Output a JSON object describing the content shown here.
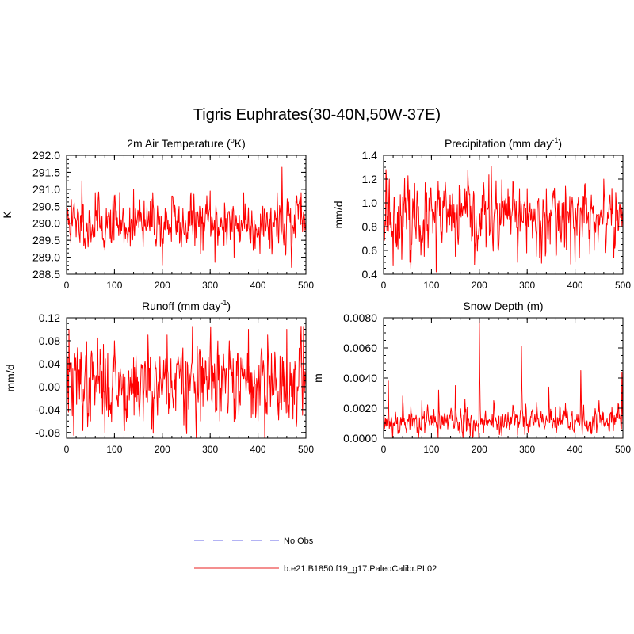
{
  "figure": {
    "title": "Tigris Euphrates(30-40N,50W-37E)"
  },
  "legend": {
    "entries": [
      {
        "label": "No Obs",
        "color": "#9a9af0",
        "style": "dashed"
      },
      {
        "label": "b.e21.B1850.f19_g17.PaleoCalibr.PI.02",
        "color": "#f06a6a",
        "style": "solid"
      }
    ]
  },
  "chart_data": [
    {
      "type": "line",
      "title_main": "2m Air Temperature (",
      "title_sup": "o",
      "title_tail": "K)",
      "ylabel": "K",
      "xlabel": "",
      "xlim": [
        0,
        500
      ],
      "ylim": [
        288.5,
        292.0
      ],
      "xticks": [
        0,
        100,
        200,
        300,
        400,
        500
      ],
      "xtick_labels": [
        "0",
        "100",
        "200",
        "300",
        "400",
        "500"
      ],
      "yticks": [
        288.5,
        289.0,
        289.5,
        290.0,
        290.5,
        291.0,
        291.5,
        292.0
      ],
      "ytick_labels": [
        "288.5",
        "289.0",
        "289.5",
        "290.0",
        "290.5",
        "291.0",
        "291.5",
        "292.0"
      ],
      "series": [
        {
          "name": "b.e21.B1850.f19_g17.PaleoCalibr.PI.02",
          "color": "#ff0000",
          "n": 500,
          "anchors": [
            [
              0,
              290.3
            ],
            [
              10,
              290.7
            ],
            [
              20,
              289.6
            ],
            [
              32,
              291.25
            ],
            [
              45,
              289.3
            ],
            [
              60,
              290.9
            ],
            [
              80,
              289.2
            ],
            [
              100,
              290.8
            ],
            [
              120,
              289.4
            ],
            [
              140,
              291.0
            ],
            [
              160,
              289.3
            ],
            [
              180,
              290.9
            ],
            [
              200,
              288.75
            ],
            [
              220,
              290.8
            ],
            [
              240,
              289.3
            ],
            [
              260,
              290.9
            ],
            [
              280,
              289.1
            ],
            [
              300,
              290.95
            ],
            [
              310,
              288.85
            ],
            [
              330,
              290.6
            ],
            [
              350,
              289.0
            ],
            [
              370,
              290.9
            ],
            [
              390,
              289.2
            ],
            [
              410,
              290.5
            ],
            [
              430,
              289.4
            ],
            [
              440,
              290.9
            ],
            [
              450,
              291.65
            ],
            [
              460,
              290.3
            ],
            [
              470,
              288.7
            ],
            [
              480,
              290.6
            ],
            [
              490,
              290.9
            ],
            [
              500,
              290.1
            ]
          ],
          "mean": 290.0,
          "noise": 0.34,
          "seed": 11
        }
      ]
    },
    {
      "type": "line",
      "title_main": "Precipitation (mm day",
      "title_sup": "-1",
      "title_tail": ")",
      "ylabel": "mm/d",
      "xlabel": "",
      "xlim": [
        0,
        500
      ],
      "ylim": [
        0.4,
        1.4
      ],
      "xticks": [
        0,
        100,
        200,
        300,
        400,
        500
      ],
      "xtick_labels": [
        "0",
        "100",
        "200",
        "300",
        "400",
        "500"
      ],
      "yticks": [
        0.4,
        0.6,
        0.8,
        1.0,
        1.2,
        1.4
      ],
      "ytick_labels": [
        "0.4",
        "0.6",
        "0.8",
        "1.0",
        "1.2",
        "1.4"
      ],
      "series": [
        {
          "name": "b.e21.B1850.f19_g17.PaleoCalibr.PI.02",
          "color": "#ff0000",
          "n": 500,
          "anchors": [
            [
              0,
              0.9
            ],
            [
              5,
              1.28
            ],
            [
              12,
              1.2
            ],
            [
              20,
              0.47
            ],
            [
              40,
              1.05
            ],
            [
              55,
              0.5
            ],
            [
              70,
              1.1
            ],
            [
              85,
              0.55
            ],
            [
              100,
              1.0
            ],
            [
              110,
              0.42
            ],
            [
              130,
              1.1
            ],
            [
              150,
              0.55
            ],
            [
              170,
              1.12
            ],
            [
              190,
              0.48
            ],
            [
              210,
              1.1
            ],
            [
              225,
              1.31
            ],
            [
              240,
              0.6
            ],
            [
              260,
              1.12
            ],
            [
              280,
              0.5
            ],
            [
              300,
              1.12
            ],
            [
              320,
              0.55
            ],
            [
              340,
              1.12
            ],
            [
              360,
              0.55
            ],
            [
              380,
              1.14
            ],
            [
              400,
              0.5
            ],
            [
              420,
              1.15
            ],
            [
              440,
              0.6
            ],
            [
              460,
              1.2
            ],
            [
              480,
              0.55
            ],
            [
              500,
              0.95
            ]
          ],
          "mean": 0.87,
          "noise": 0.13,
          "seed": 23
        }
      ]
    },
    {
      "type": "line",
      "title_main": "Runoff (mm day",
      "title_sup": "-1",
      "title_tail": ")",
      "ylabel": "mm/d",
      "xlabel": "",
      "xlim": [
        0,
        500
      ],
      "ylim": [
        -0.09,
        0.12
      ],
      "xticks": [
        0,
        100,
        200,
        300,
        400,
        500
      ],
      "xtick_labels": [
        "0",
        "100",
        "200",
        "300",
        "400",
        "500"
      ],
      "yticks": [
        -0.08,
        -0.04,
        0.0,
        0.04,
        0.08,
        0.12
      ],
      "ytick_labels": [
        "-0.08",
        "-0.04",
        "0.00",
        "0.04",
        "0.08",
        "0.12"
      ],
      "series": [
        {
          "name": "b.e21.B1850.f19_g17.PaleoCalibr.PI.02",
          "color": "#ff0000",
          "n": 500,
          "anchors": [
            [
              0,
              0.0
            ],
            [
              5,
              0.1
            ],
            [
              15,
              -0.085
            ],
            [
              30,
              0.06
            ],
            [
              50,
              -0.06
            ],
            [
              65,
              0.085
            ],
            [
              80,
              -0.08
            ],
            [
              100,
              0.08
            ],
            [
              120,
              -0.07
            ],
            [
              140,
              0.05
            ],
            [
              160,
              -0.06
            ],
            [
              170,
              0.09
            ],
            [
              190,
              -0.05
            ],
            [
              210,
              0.09
            ],
            [
              230,
              0.04
            ],
            [
              250,
              -0.07
            ],
            [
              263,
              0.105
            ],
            [
              280,
              -0.06
            ],
            [
              300,
              0.07
            ],
            [
              320,
              -0.06
            ],
            [
              340,
              0.08
            ],
            [
              360,
              -0.05
            ],
            [
              380,
              0.1
            ],
            [
              400,
              -0.06
            ],
            [
              420,
              0.09
            ],
            [
              440,
              -0.05
            ],
            [
              460,
              0.1
            ],
            [
              480,
              -0.07
            ],
            [
              495,
              0.105
            ],
            [
              500,
              0.0
            ]
          ],
          "mean": 0.005,
          "noise": 0.032,
          "seed": 37
        }
      ]
    },
    {
      "type": "line",
      "title_main": "Snow Depth (m)",
      "title_sup": "",
      "title_tail": "",
      "ylabel": "m",
      "xlabel": "",
      "xlim": [
        0,
        500
      ],
      "ylim": [
        0.0,
        0.008
      ],
      "xticks": [
        0,
        100,
        200,
        300,
        400,
        500
      ],
      "xtick_labels": [
        "0",
        "100",
        "200",
        "300",
        "400",
        "500"
      ],
      "yticks": [
        0.0,
        0.002,
        0.004,
        0.006,
        0.008
      ],
      "ytick_labels": [
        "0.0000",
        "0.0020",
        "0.0040",
        "0.0060",
        "0.0080"
      ],
      "series": [
        {
          "name": "b.e21.B1850.f19_g17.PaleoCalibr.PI.02",
          "color": "#ff0000",
          "n": 500,
          "anchors": [
            [
              0,
              0.0008
            ],
            [
              10,
              0.0038
            ],
            [
              20,
              0.001
            ],
            [
              40,
              0.0028
            ],
            [
              60,
              0.0008
            ],
            [
              80,
              0.0025
            ],
            [
              100,
              0.0009
            ],
            [
              115,
              0.0032
            ],
            [
              130,
              0.0012
            ],
            [
              150,
              0.0035
            ],
            [
              160,
              0.0014
            ],
            [
              170,
              0.0026
            ],
            [
              185,
              0.0009
            ],
            [
              200,
              0.0079
            ],
            [
              210,
              0.0012
            ],
            [
              230,
              0.0025
            ],
            [
              250,
              0.0008
            ],
            [
              270,
              0.0022
            ],
            [
              288,
              0.0061
            ],
            [
              300,
              0.0009
            ],
            [
              320,
              0.0024
            ],
            [
              345,
              0.0034
            ],
            [
              360,
              0.0011
            ],
            [
              380,
              0.0023
            ],
            [
              400,
              0.0009
            ],
            [
              412,
              0.0045
            ],
            [
              430,
              0.0011
            ],
            [
              450,
              0.0025
            ],
            [
              470,
              0.0008
            ],
            [
              490,
              0.0023
            ],
            [
              498,
              0.0044
            ],
            [
              500,
              0.001
            ]
          ],
          "mean": 0.0011,
          "noise": 0.00045,
          "seed": 53
        }
      ]
    }
  ]
}
